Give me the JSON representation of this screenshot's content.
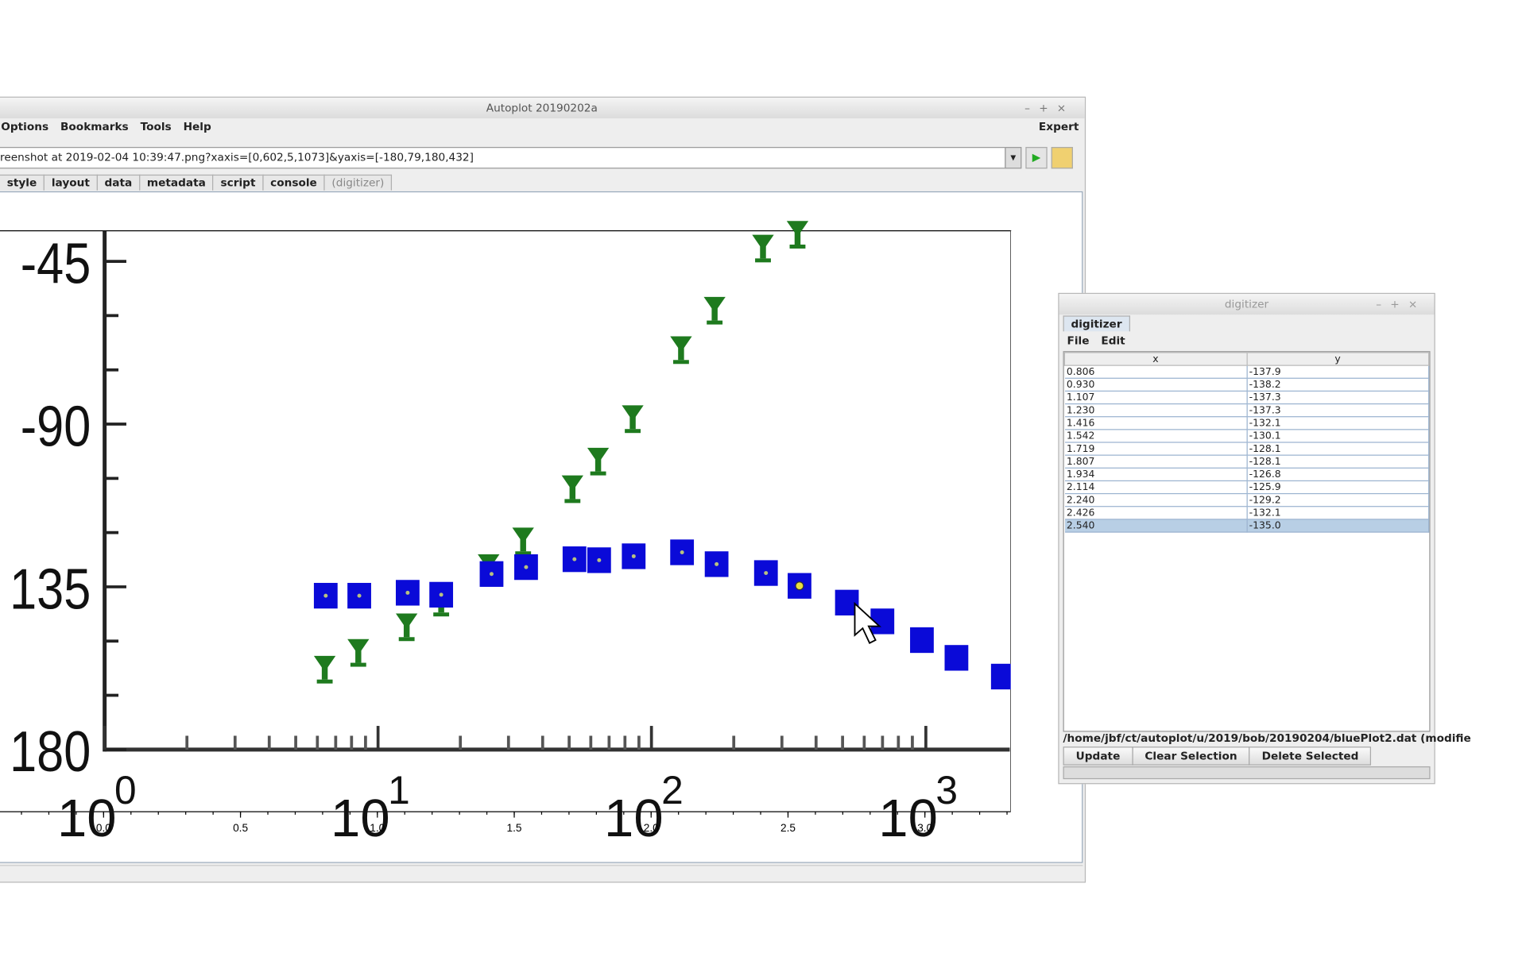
{
  "main_window": {
    "title": "Autoplot 20190202a",
    "menu": [
      "Options",
      "Bookmarks",
      "Tools",
      "Help"
    ],
    "menu_right": "Expert",
    "uri": "reenshot at 2019-02-04 10:39:47.png?xaxis=[0,602,5,1073]&yaxis=[-180,79,180,432]",
    "tabs": [
      "style",
      "layout",
      "data",
      "metadata",
      "script",
      "console",
      "(digitizer)"
    ]
  },
  "image_labels": {
    "y": [
      "-45",
      "-90",
      "135",
      "180"
    ],
    "x_base": [
      "10",
      "10",
      "10",
      "10"
    ],
    "x_exp": [
      "0",
      "1",
      "2",
      "3"
    ]
  },
  "plot": {
    "xlim": [
      -0.382,
      3.31
    ],
    "xticks": [
      {
        "value": 0,
        "label": "0.0"
      },
      {
        "value": 0.5,
        "label": "0.5"
      },
      {
        "value": 1,
        "label": "1.0"
      },
      {
        "value": 1.5,
        "label": "1.5"
      },
      {
        "value": 2,
        "label": "2.0"
      },
      {
        "value": 2.5,
        "label": "2.5"
      },
      {
        "value": 3,
        "label": "3.0"
      }
    ]
  },
  "digitizer": {
    "title": "digitizer",
    "tab": "digitizer",
    "menu": [
      "File",
      "Edit"
    ],
    "columns": [
      "x",
      "y"
    ],
    "rows": [
      [
        "0.806",
        "-137.9"
      ],
      [
        "0.930",
        "-138.2"
      ],
      [
        "1.107",
        "-137.3"
      ],
      [
        "1.230",
        "-137.3"
      ],
      [
        "1.416",
        "-132.1"
      ],
      [
        "1.542",
        "-130.1"
      ],
      [
        "1.719",
        "-128.1"
      ],
      [
        "1.807",
        "-128.1"
      ],
      [
        "1.934",
        "-126.8"
      ],
      [
        "2.114",
        "-125.9"
      ],
      [
        "2.240",
        "-129.2"
      ],
      [
        "2.426",
        "-132.1"
      ],
      [
        "2.540",
        "-135.0"
      ]
    ],
    "file": "/home/jbf/ct/autoplot/u/2019/bob/20190204/bluePlot2.dat (modifie",
    "buttons": [
      "Update",
      "Clear Selection",
      "Delete Selected"
    ]
  }
}
